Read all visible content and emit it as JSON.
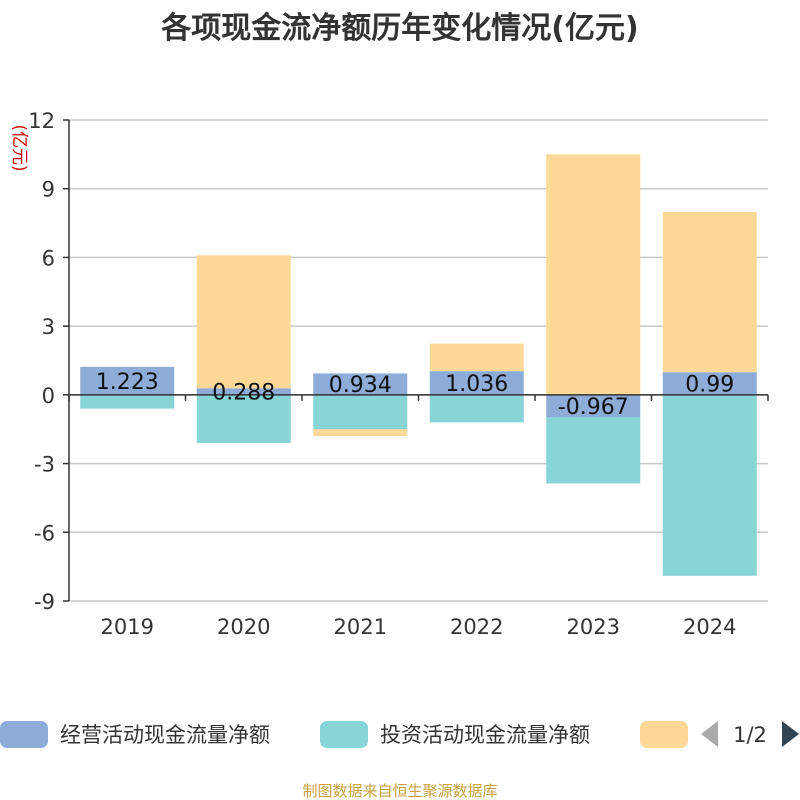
{
  "chart_data": {
    "type": "bar",
    "stacked": true,
    "title": "各项现金流净额历年变化情况(亿元)",
    "ylabel": "(亿元)",
    "xlabel": "",
    "categories": [
      "2019",
      "2020",
      "2021",
      "2022",
      "2023",
      "2024"
    ],
    "ylim": [
      -9,
      12
    ],
    "yticks": [
      12,
      9,
      6,
      3,
      0,
      -3,
      -6,
      -9
    ],
    "grid": true,
    "legend_position": "bottom",
    "series": [
      {
        "name": "经营活动现金流量净额",
        "color": "#8eacd8",
        "values": [
          1.223,
          0.288,
          0.934,
          1.036,
          -0.967,
          0.99
        ],
        "labels": [
          "1.223",
          "0.288",
          "0.934",
          "1.036",
          "-0.967",
          "0.99"
        ]
      },
      {
        "name": "投资活动现金流量净额",
        "color": "#88d5d8",
        "values": [
          -0.6,
          -2.1,
          -1.5,
          -1.2,
          -2.9,
          -7.9
        ]
      },
      {
        "name": "",
        "color": "#fdd897",
        "values": [
          0,
          5.8,
          -0.3,
          1.2,
          10.5,
          7.0
        ]
      }
    ]
  },
  "legend": {
    "page_indicator": "1/2",
    "prev_icon": "triangle-left-icon",
    "next_icon": "triangle-right-icon"
  },
  "source": "制图数据来自恒生聚源数据库"
}
